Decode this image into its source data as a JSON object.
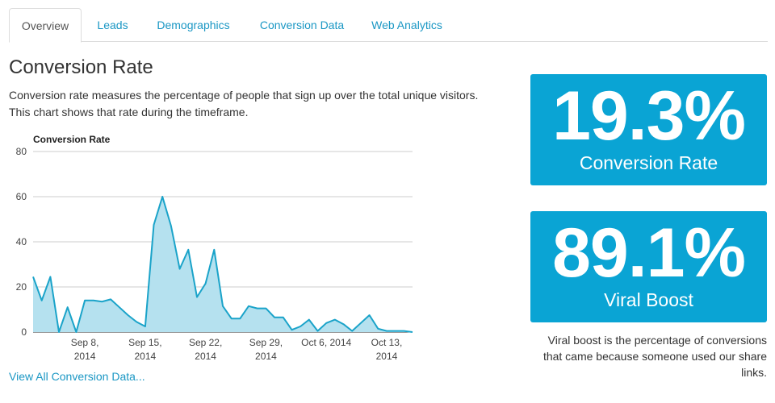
{
  "tabs": [
    {
      "label": "Overview",
      "active": true
    },
    {
      "label": "Leads",
      "active": false
    },
    {
      "label": "Demographics",
      "active": false
    },
    {
      "label": "Conversion Data",
      "active": false
    },
    {
      "label": "Web Analytics",
      "active": false
    }
  ],
  "page": {
    "title": "Conversion Rate",
    "description_lines": [
      "Conversion rate measures the percentage of people that sign up over the total unique visitors.",
      "This chart shows that rate during the timeframe."
    ],
    "view_all_link": "View All Conversion Data..."
  },
  "stats": {
    "conversion": {
      "value": "19.3%",
      "label": "Conversion Rate"
    },
    "viral": {
      "value": "89.1%",
      "label": "Viral Boost"
    },
    "viral_note": "Viral boost is the percentage of conversions that came because someone used our share links."
  },
  "colors": {
    "accent": "#0aa4d4",
    "link": "#1a97c4",
    "line": "#1aa3c9",
    "area": "#b5e1ef"
  },
  "chart_data": {
    "type": "area",
    "title": "Conversion Rate",
    "xlabel": "",
    "ylabel": "",
    "ylim": [
      0,
      80
    ],
    "yticks": [
      0,
      20,
      40,
      60,
      80
    ],
    "grid": true,
    "legend": "none",
    "x_start": "Sep 2, 2014",
    "x_end": "Oct 16, 2014",
    "xticks": [
      {
        "date": "Sep 8, 2014",
        "line1": "Sep 8,",
        "line2": "2014"
      },
      {
        "date": "Sep 15, 2014",
        "line1": "Sep 15,",
        "line2": "2014"
      },
      {
        "date": "Sep 22, 2014",
        "line1": "Sep 22,",
        "line2": "2014"
      },
      {
        "date": "Sep 29, 2014",
        "line1": "Sep 29,",
        "line2": "2014"
      },
      {
        "date": "Oct 6, 2014",
        "line1": "Oct 6, 2014",
        "line2": ""
      },
      {
        "date": "Oct 13, 2014",
        "line1": "Oct 13,",
        "line2": "2014"
      }
    ],
    "series": [
      {
        "values": [
          {
            "x": "Sep 2, 2014",
            "y": 24.5
          },
          {
            "x": "Sep 3, 2014",
            "y": 14
          },
          {
            "x": "Sep 4, 2014",
            "y": 24.5
          },
          {
            "x": "Sep 5, 2014",
            "y": 0
          },
          {
            "x": "Sep 6, 2014",
            "y": 11
          },
          {
            "x": "Sep 7, 2014",
            "y": 0
          },
          {
            "x": "Sep 8, 2014",
            "y": 14
          },
          {
            "x": "Sep 9, 2014",
            "y": 14
          },
          {
            "x": "Sep 10, 2014",
            "y": 13.5
          },
          {
            "x": "Sep 11, 2014",
            "y": 14.5
          },
          {
            "x": "Sep 12, 2014",
            "y": 11
          },
          {
            "x": "Sep 13, 2014",
            "y": 7.5
          },
          {
            "x": "Sep 14, 2014",
            "y": 4.5
          },
          {
            "x": "Sep 15, 2014",
            "y": 2.5
          },
          {
            "x": "Sep 16, 2014",
            "y": 47.5
          },
          {
            "x": "Sep 17, 2014",
            "y": 60
          },
          {
            "x": "Sep 18, 2014",
            "y": 47
          },
          {
            "x": "Sep 19, 2014",
            "y": 28
          },
          {
            "x": "Sep 20, 2014",
            "y": 36.5
          },
          {
            "x": "Sep 21, 2014",
            "y": 15.5
          },
          {
            "x": "Sep 22, 2014",
            "y": 21.5
          },
          {
            "x": "Sep 23, 2014",
            "y": 36.5
          },
          {
            "x": "Sep 24, 2014",
            "y": 11.5
          },
          {
            "x": "Sep 25, 2014",
            "y": 6
          },
          {
            "x": "Sep 26, 2014",
            "y": 6
          },
          {
            "x": "Sep 27, 2014",
            "y": 11.5
          },
          {
            "x": "Sep 28, 2014",
            "y": 10.5
          },
          {
            "x": "Sep 29, 2014",
            "y": 10.5
          },
          {
            "x": "Sep 30, 2014",
            "y": 6.5
          },
          {
            "x": "Oct 1, 2014",
            "y": 6.5
          },
          {
            "x": "Oct 2, 2014",
            "y": 1
          },
          {
            "x": "Oct 3, 2014",
            "y": 2.5
          },
          {
            "x": "Oct 4, 2014",
            "y": 5.5
          },
          {
            "x": "Oct 5, 2014",
            "y": 0.5
          },
          {
            "x": "Oct 6, 2014",
            "y": 4
          },
          {
            "x": "Oct 7, 2014",
            "y": 5.5
          },
          {
            "x": "Oct 8, 2014",
            "y": 3.5
          },
          {
            "x": "Oct 9, 2014",
            "y": 0.5
          },
          {
            "x": "Oct 10, 2014",
            "y": 4
          },
          {
            "x": "Oct 11, 2014",
            "y": 7.5
          },
          {
            "x": "Oct 12, 2014",
            "y": 1.5
          },
          {
            "x": "Oct 13, 2014",
            "y": 0.5
          },
          {
            "x": "Oct 14, 2014",
            "y": 0.5
          },
          {
            "x": "Oct 15, 2014",
            "y": 0.5
          },
          {
            "x": "Oct 16, 2014",
            "y": 0
          }
        ]
      }
    ]
  }
}
